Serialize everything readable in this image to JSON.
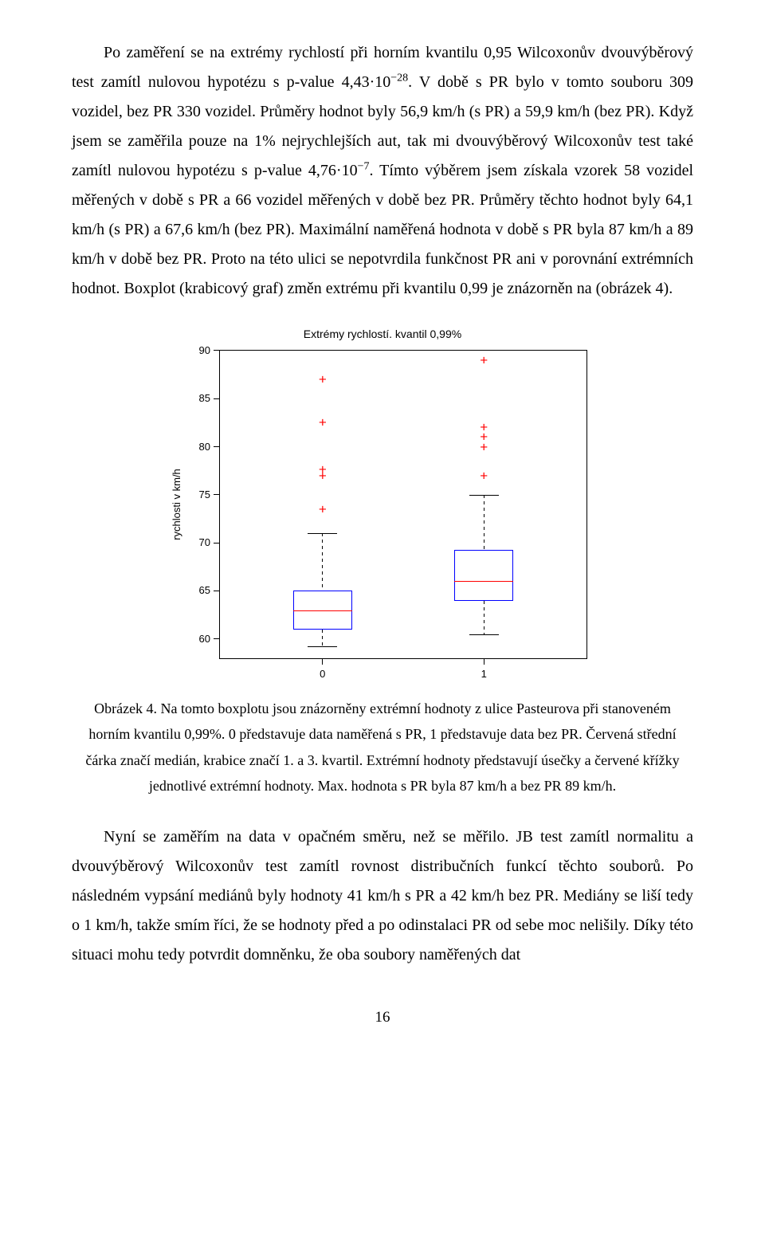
{
  "para1_html": "Po zaměření se na extrémy rychlostí při horním kvantilu 0,95 Wilcoxonův dvouvýběrový test zamítl nulovou hypotézu s p-value 4,43·10<span class=\"sup\">−28</span>. V době s PR bylo v tomto souboru 309 vozidel, bez PR 330 vozidel. Průměry hodnot byly 56,9 km/h (s PR) a 59,9 km/h (bez PR). Když jsem se zaměřila pouze na 1% nejrychlejších aut, tak mi dvouvýběrový Wilcoxonův test také zamítl nulovou hypotézu s p-value 4,76·10<span class=\"sup\">−7</span>. Tímto výběrem jsem získala vzorek 58 vozidel měřených v době s PR a 66 vozidel měřených v době bez PR. Průměry těchto hodnot byly 64,1 km/h (s PR) a 67,6 km/h (bez PR). Maximální naměřená hodnota v době s PR byla 87 km/h a 89 km/h v době bez PR. Proto na této ulici se nepotvrdila funkčnost PR ani v porovnání extrémních hodnot. Boxplot (krabicový graf) změn extrému při kvantilu 0,99 je znázorněn na (obrázek 4).",
  "caption_html": "Obrázek 4. Na tomto boxplotu jsou znázorněny extrémní hodnoty z ulice Pasteurova při stanoveném horním kvantilu 0,99%. 0 představuje data naměřená s  PR, 1 představuje data bez PR. Červená střední čárka značí medián, krabice značí 1. a 3. kvartil. Extrémní hodnoty představují úsečky a červené křížky jednotlivé extrémní hodnoty. Max. hodnota s PR byla 87 km/h a bez PR 89 km/h.",
  "para2": "Nyní se zaměřím na data v opačném směru, než se měřilo. JB test zamítl normalitu a dvouvýběrový Wilcoxonův test zamítl rovnost distribučních funkcí těchto souborů. Po následném vypsání mediánů byly hodnoty 41 km/h s PR a 42 km/h bez PR. Mediány se liší tedy o 1 km/h, takže smím říci, že se hodnoty před a po odinstalaci PR od sebe moc nelišily. Díky této situaci mohu tedy potvrdit domněnku, že oba soubory naměřených dat",
  "page_number": "16",
  "chart": {
    "type": "boxplot",
    "title": "Extrémy rychlostí. kvantil 0,99%",
    "yaxis_label": "rychlosti v km/h",
    "ylim": [
      58,
      90
    ],
    "ytick_step": 5,
    "yticks": [
      60,
      65,
      70,
      75,
      80,
      85,
      90
    ],
    "xticks": [
      0,
      1
    ],
    "xtick_labels": [
      "0",
      "1"
    ],
    "background_color": "#ffffff",
    "axis_color": "#000000",
    "box_border_color": "#0000ff",
    "median_color": "#ff0000",
    "outlier_color": "#ff0000",
    "tick_font_family": "Arial",
    "tick_fontsize": 13,
    "title_fontsize": 14,
    "box_rel_width": 0.16,
    "cap_rel_width": 0.08,
    "series": [
      {
        "x": 0,
        "q1": 61.0,
        "median": 63.0,
        "q3": 65.0,
        "whisker_low": 59.2,
        "whisker_high": 71.0,
        "outliers": [
          73.5,
          77.0,
          77.6,
          82.5,
          87.0
        ]
      },
      {
        "x": 1,
        "q1": 64.0,
        "median": 66.0,
        "q3": 69.3,
        "whisker_low": 60.5,
        "whisker_high": 75.0,
        "outliers": [
          77.0,
          80.0,
          81.0,
          82.0,
          89.0
        ]
      }
    ]
  }
}
